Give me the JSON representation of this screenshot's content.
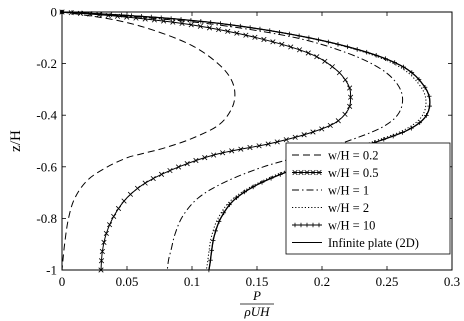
{
  "chart_data": {
    "type": "line",
    "xlabel_num": "P",
    "xlabel_den": "ρUH",
    "ylabel": "z/H",
    "xlim": [
      0,
      0.3
    ],
    "ylim": [
      -1,
      0
    ],
    "xticks": [
      0,
      0.05,
      0.1,
      0.15,
      0.2,
      0.25,
      0.3
    ],
    "xtick_labels": [
      "0",
      "0.05",
      "0.1",
      "0.15",
      "0.2",
      "0.25",
      "0.3"
    ],
    "yticks": [
      0,
      -0.2,
      -0.4,
      -0.6,
      -0.8,
      -1
    ],
    "ytick_labels": [
      "0",
      "-0.2",
      "-0.4",
      "-0.6",
      "-0.8",
      "-1"
    ],
    "grid": false,
    "legend_position": "bottom-right",
    "series": [
      {
        "name": "w/H = 0.2",
        "style": "dashed",
        "marker": "none",
        "x": [
          0,
          0.04,
          0.07,
          0.1,
          0.12,
          0.13,
          0.133,
          0.13,
          0.12,
          0.1,
          0.08,
          0.065,
          0.057,
          0.05,
          0.035,
          0.02,
          0.01,
          0.005,
          0.002,
          0
        ],
        "y": [
          0,
          -0.03,
          -0.07,
          -0.13,
          -0.2,
          -0.26,
          -0.32,
          -0.38,
          -0.44,
          -0.49,
          -0.525,
          -0.545,
          -0.555,
          -0.565,
          -0.6,
          -0.65,
          -0.72,
          -0.8,
          -0.9,
          -1
        ]
      },
      {
        "name": "w/H = 0.5",
        "style": "solid",
        "marker": "x",
        "x": [
          0,
          0.05,
          0.1,
          0.15,
          0.19,
          0.21,
          0.22,
          0.222,
          0.22,
          0.21,
          0.19,
          0.16,
          0.12,
          0.09,
          0.065,
          0.05,
          0.04,
          0.034,
          0.031,
          0.03
        ],
        "y": [
          0,
          -0.02,
          -0.05,
          -0.1,
          -0.16,
          -0.22,
          -0.28,
          -0.33,
          -0.38,
          -0.43,
          -0.47,
          -0.51,
          -0.55,
          -0.6,
          -0.66,
          -0.72,
          -0.79,
          -0.86,
          -0.93,
          -1
        ]
      },
      {
        "name": "w/H = 1",
        "style": "dashdot",
        "marker": "none",
        "x": [
          0,
          0.06,
          0.12,
          0.18,
          0.22,
          0.245,
          0.258,
          0.262,
          0.258,
          0.245,
          0.22,
          0.19,
          0.155,
          0.125,
          0.105,
          0.093,
          0.087,
          0.084,
          0.082,
          0.081
        ],
        "y": [
          0,
          -0.02,
          -0.05,
          -0.1,
          -0.16,
          -0.22,
          -0.28,
          -0.34,
          -0.4,
          -0.45,
          -0.5,
          -0.55,
          -0.6,
          -0.66,
          -0.72,
          -0.79,
          -0.86,
          -0.92,
          -0.96,
          -1
        ]
      },
      {
        "name": "w/H = 2",
        "style": "dotted",
        "marker": "none",
        "x": [
          0,
          0.07,
          0.13,
          0.19,
          0.235,
          0.262,
          0.276,
          0.28,
          0.276,
          0.262,
          0.235,
          0.205,
          0.175,
          0.148,
          0.13,
          0.12,
          0.115,
          0.113,
          0.112,
          0.111
        ],
        "y": [
          0,
          -0.02,
          -0.05,
          -0.1,
          -0.16,
          -0.22,
          -0.29,
          -0.35,
          -0.41,
          -0.46,
          -0.51,
          -0.56,
          -0.61,
          -0.67,
          -0.73,
          -0.8,
          -0.87,
          -0.93,
          -0.97,
          -1
        ]
      },
      {
        "name": "w/H = 10",
        "style": "solid",
        "marker": "plus",
        "x": [
          0,
          0.07,
          0.13,
          0.19,
          0.237,
          0.265,
          0.279,
          0.283,
          0.279,
          0.265,
          0.238,
          0.208,
          0.178,
          0.15,
          0.132,
          0.122,
          0.117,
          0.115,
          0.114,
          0.113
        ],
        "y": [
          0,
          -0.02,
          -0.05,
          -0.1,
          -0.16,
          -0.22,
          -0.29,
          -0.35,
          -0.41,
          -0.46,
          -0.51,
          -0.56,
          -0.61,
          -0.67,
          -0.73,
          -0.8,
          -0.87,
          -0.93,
          -0.97,
          -1
        ]
      },
      {
        "name": "Infinite plate (2D)",
        "style": "solid",
        "marker": "none",
        "x": [
          0,
          0.07,
          0.13,
          0.19,
          0.237,
          0.265,
          0.279,
          0.283,
          0.279,
          0.265,
          0.238,
          0.208,
          0.178,
          0.15,
          0.132,
          0.122,
          0.117,
          0.115,
          0.114,
          0.113
        ],
        "y": [
          0,
          -0.02,
          -0.05,
          -0.1,
          -0.16,
          -0.22,
          -0.29,
          -0.35,
          -0.41,
          -0.46,
          -0.51,
          -0.56,
          -0.61,
          -0.67,
          -0.73,
          -0.8,
          -0.87,
          -0.93,
          -0.97,
          -1
        ]
      }
    ]
  }
}
